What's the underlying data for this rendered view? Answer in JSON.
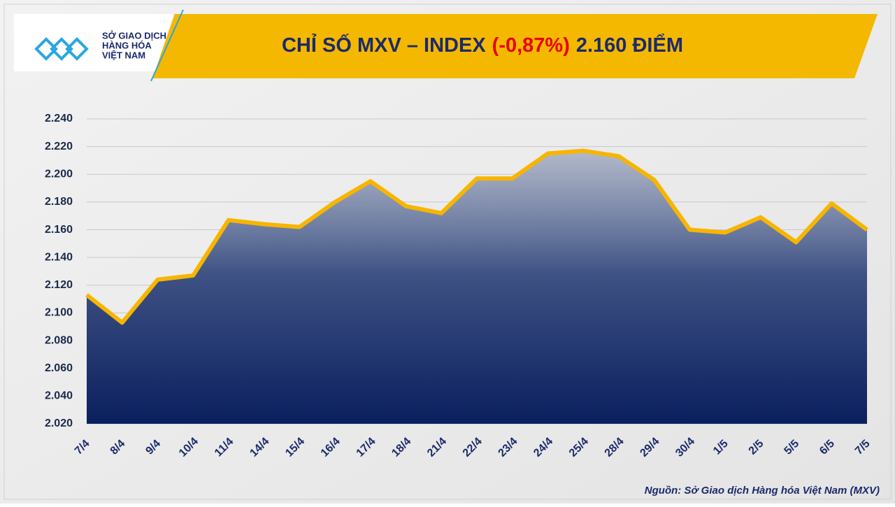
{
  "logo": {
    "lines": [
      "SỞ GIAO DỊCH",
      "HÀNG HÓA",
      "VIỆT NAM"
    ]
  },
  "chart_data": {
    "type": "area",
    "title": [
      "CHỈ SỐ MXV – INDEX",
      "(-0,87%)",
      "2.160 ĐIỂM"
    ],
    "title_color": "#1b2a6b",
    "title_highlight_color": "#e8000d",
    "categories": [
      "7/4",
      "8/4",
      "9/4",
      "10/4",
      "11/4",
      "14/4",
      "15/4",
      "16/4",
      "17/4",
      "18/4",
      "21/4",
      "22/4",
      "23/4",
      "24/4",
      "25/4",
      "28/4",
      "29/4",
      "30/4",
      "1/5",
      "2/5",
      "5/5",
      "6/5",
      "7/5"
    ],
    "series": [
      {
        "name": "MXV-Index",
        "color": "#f7b500",
        "values": [
          2113,
          2093,
          2124,
          2127,
          2167,
          2164,
          2162,
          2180,
          2195,
          2177,
          2172,
          2197,
          2197,
          2215,
          2217,
          2213,
          2196,
          2160,
          2158,
          2169,
          2151,
          2179,
          2160
        ]
      }
    ],
    "ylim": [
      2020,
      2240
    ],
    "yticks": [
      {
        "value": 2020,
        "label": "2.020"
      },
      {
        "value": 2040,
        "label": "2.040"
      },
      {
        "value": 2060,
        "label": "2.060"
      },
      {
        "value": 2080,
        "label": "2.080"
      },
      {
        "value": 2100,
        "label": "2.100"
      },
      {
        "value": 2120,
        "label": "2.120"
      },
      {
        "value": 2140,
        "label": "2.140"
      },
      {
        "value": 2160,
        "label": "2.160"
      },
      {
        "value": 2180,
        "label": "2.180"
      },
      {
        "value": 2200,
        "label": "2.200"
      },
      {
        "value": 2220,
        "label": "2.220"
      },
      {
        "value": 2240,
        "label": "2.240"
      }
    ],
    "grid": true,
    "source": "Nguồn: Sở Giao dịch Hàng hóa Việt Nam (MXV)"
  }
}
